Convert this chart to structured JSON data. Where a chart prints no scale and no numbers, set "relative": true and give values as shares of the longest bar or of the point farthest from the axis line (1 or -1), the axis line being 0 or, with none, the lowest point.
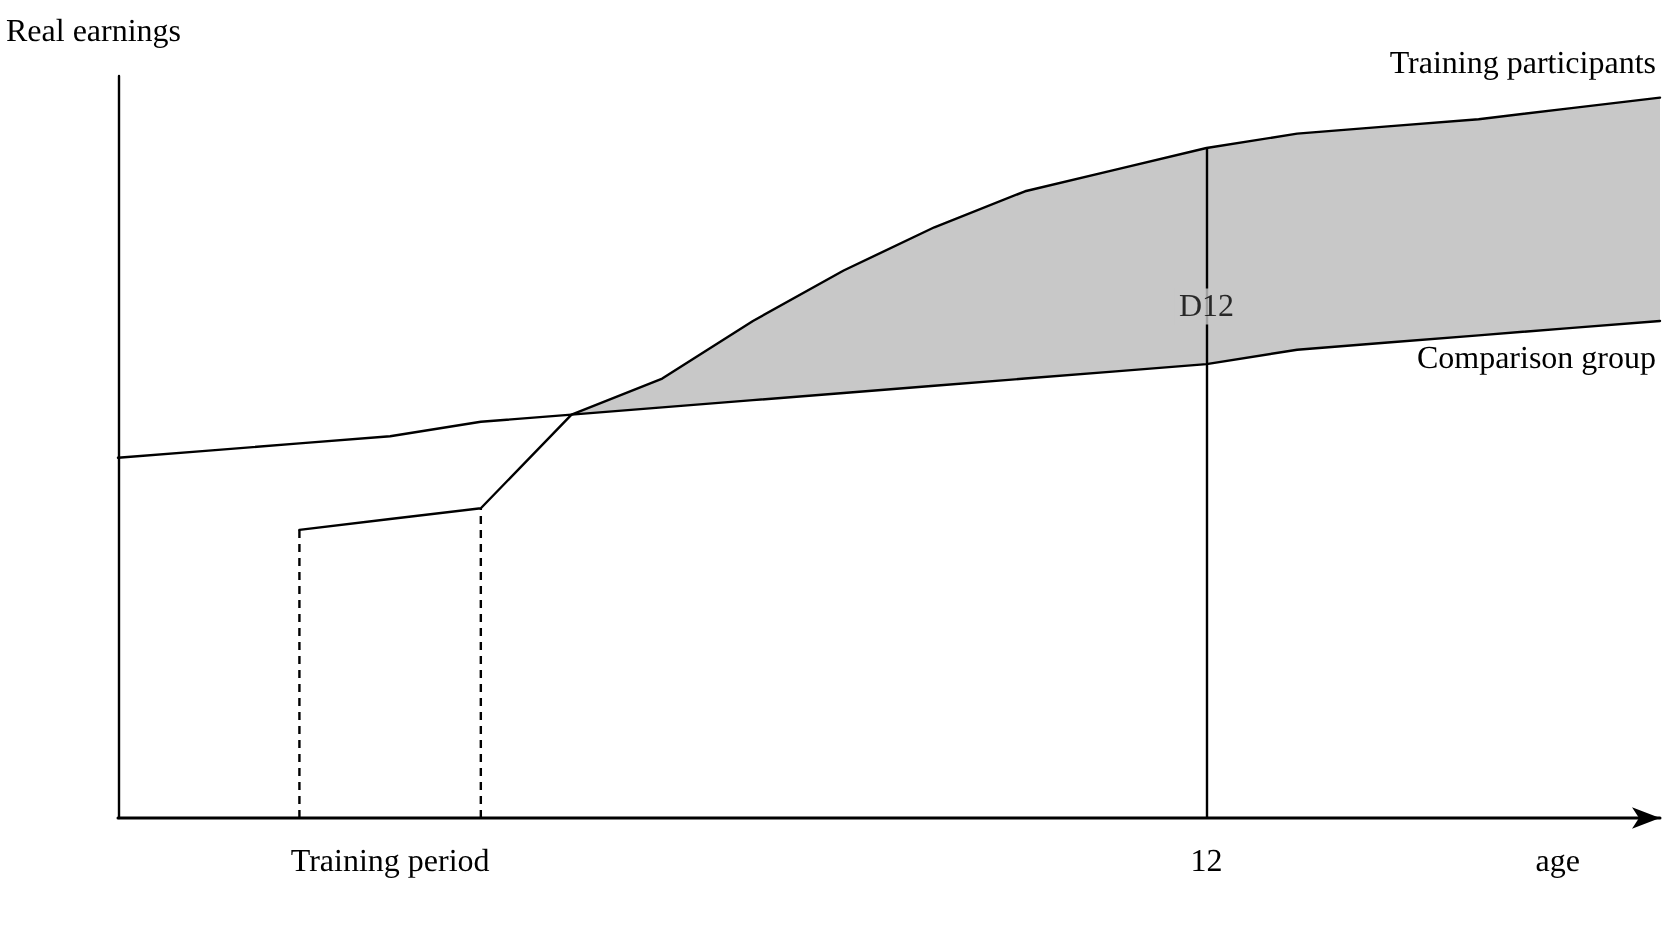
{
  "chart_data": {
    "type": "line",
    "relative": true,
    "ylabel": "Real earnings",
    "xlabel": "age",
    "categories": [
      null,
      null,
      null,
      "Training period",
      null,
      null,
      null,
      null,
      null,
      null,
      null,
      null,
      "12",
      null,
      null,
      null,
      null,
      null
    ],
    "series": [
      {
        "name": "Training participants",
        "color": "#000000",
        "values": [
          null,
          null,
          0.4,
          0.415,
          0.43,
          0.56,
          0.61,
          0.69,
          0.76,
          0.82,
          0.87,
          0.9,
          0.93,
          0.95,
          0.96,
          0.97,
          0.985,
          1.0
        ],
        "upper": [
          null,
          null,
          null,
          null,
          null,
          0.56,
          0.61,
          0.69,
          0.76,
          0.82,
          0.87,
          0.9,
          0.93,
          0.95,
          0.96,
          0.97,
          0.985,
          1.0
        ],
        "lower": [
          null,
          null,
          null,
          null,
          null,
          0.56,
          0.57,
          0.58,
          0.59,
          0.6,
          0.61,
          0.62,
          0.63,
          0.65,
          0.66,
          0.67,
          0.68,
          0.69
        ]
      },
      {
        "name": "Comparison group",
        "color": "#000000",
        "values": [
          0.5,
          0.51,
          0.52,
          0.53,
          0.55,
          0.56,
          0.57,
          0.58,
          0.59,
          0.6,
          0.61,
          0.62,
          0.63,
          0.65,
          0.66,
          0.67,
          0.68,
          0.69
        ]
      }
    ],
    "ref_lines": [
      {
        "axis": "x",
        "value": "12",
        "line_style": "solid"
      }
    ],
    "annotations": [
      {
        "text": "D12",
        "x": "12",
        "y": 0.71
      }
    ],
    "legend": false,
    "marker": "none",
    "line_style": "solid"
  }
}
